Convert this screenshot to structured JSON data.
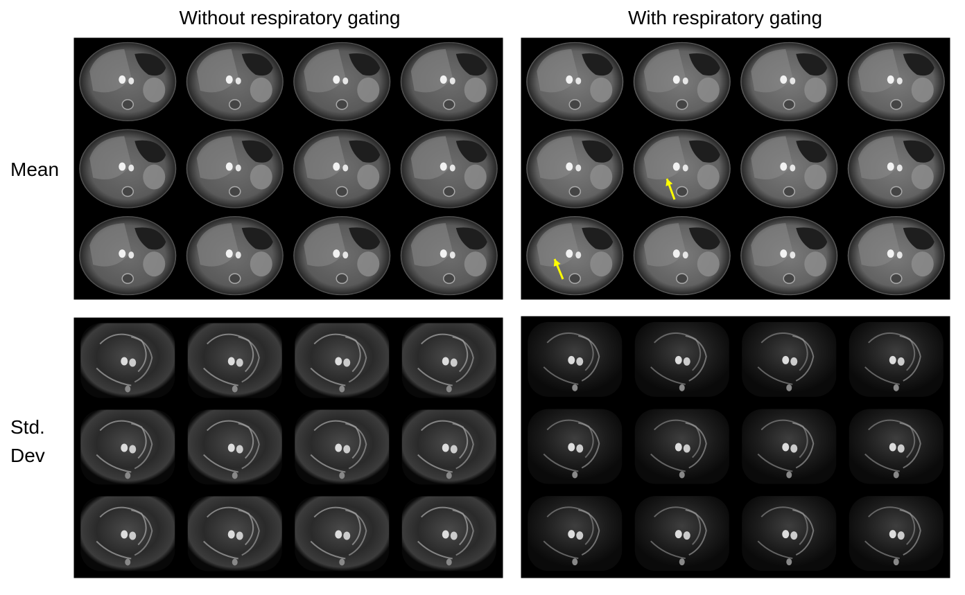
{
  "column_titles": [
    "Without respiratory gating",
    "With respiratory gating"
  ],
  "row_labels": {
    "mean": "Mean",
    "std_dev": [
      "Std.",
      "Dev"
    ]
  }
}
